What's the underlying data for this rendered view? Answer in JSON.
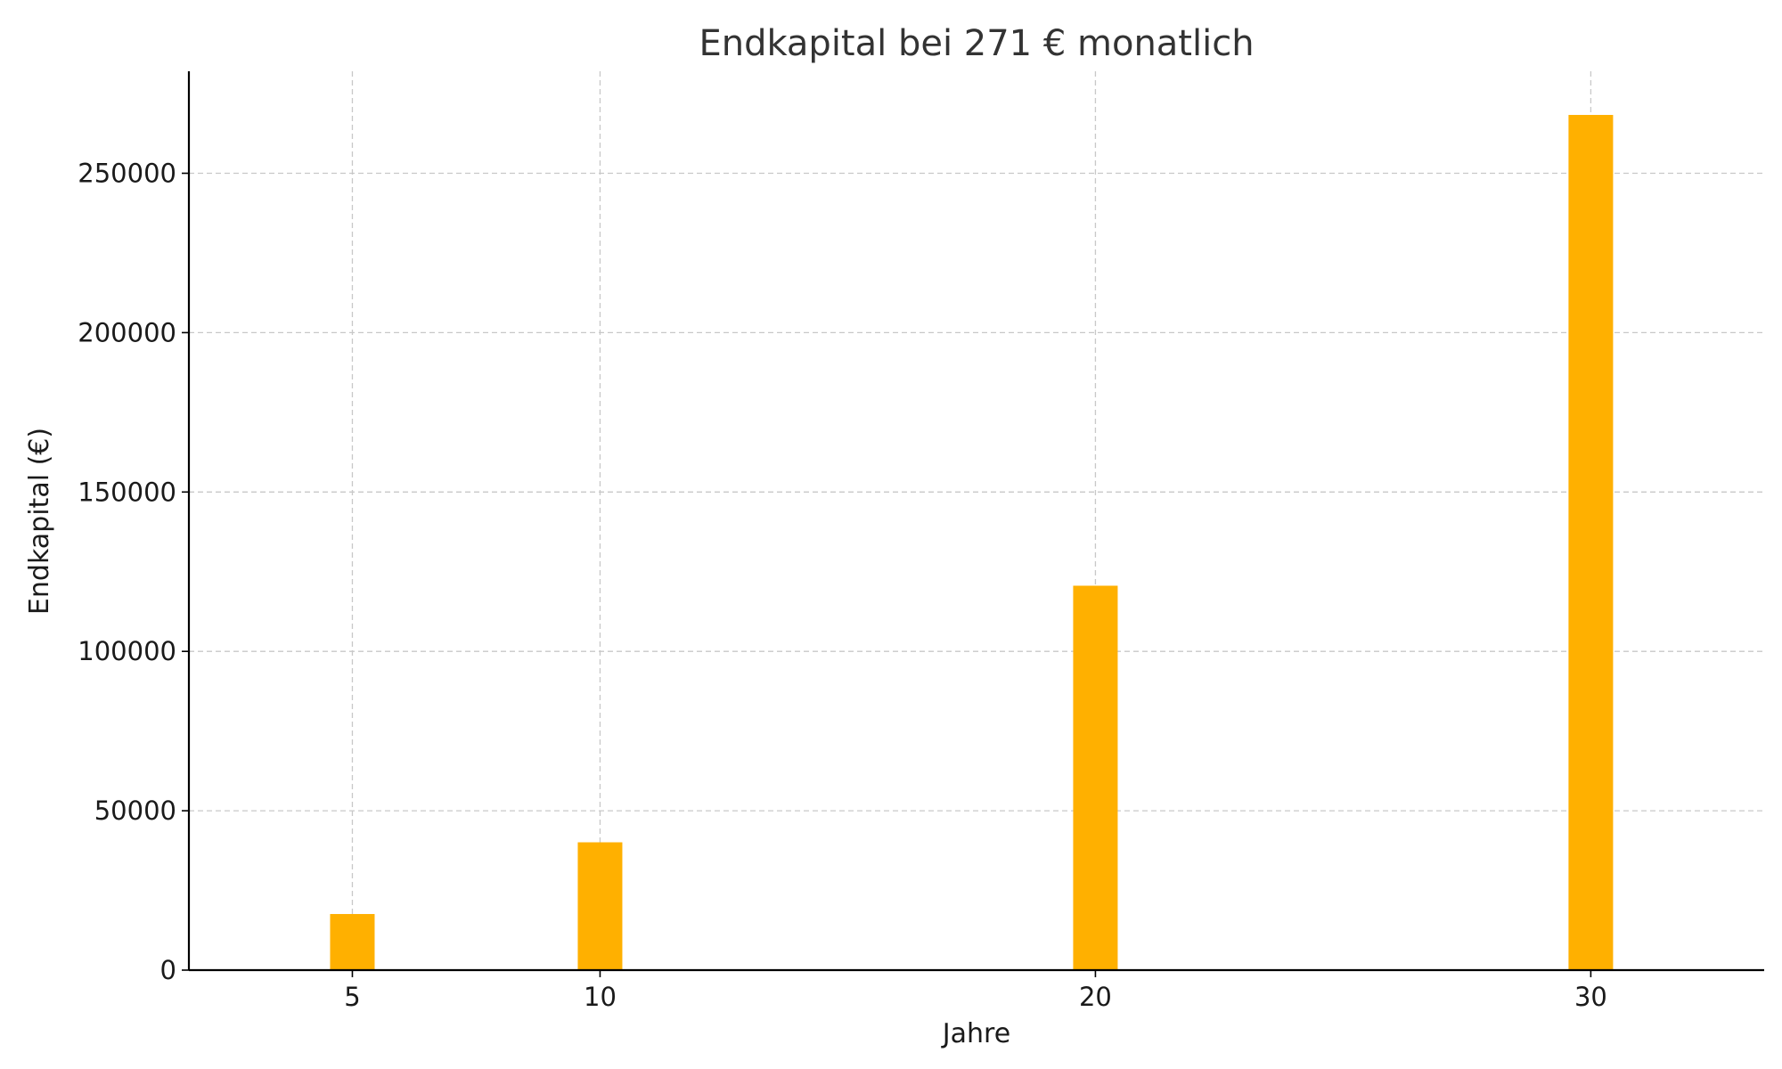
{
  "chart_data": {
    "type": "bar",
    "title": "Endkapital bei 271 € monatlich",
    "xlabel": "Jahre",
    "ylabel": "Endkapital (€)",
    "x": [
      5,
      10,
      20,
      30
    ],
    "x_tick_labels": [
      "5",
      "10",
      "20",
      "30"
    ],
    "values": [
      17600,
      40100,
      120600,
      268300
    ],
    "xlim": [
      1.7,
      33.5
    ],
    "ylim": [
      0,
      282000
    ],
    "y_ticks": [
      0,
      50000,
      100000,
      150000,
      200000,
      250000
    ],
    "y_tick_labels": [
      "0",
      "50000",
      "100000",
      "150000",
      "200000",
      "250000"
    ],
    "bar_color": "#ffb000",
    "grid": true,
    "legend": "none"
  }
}
